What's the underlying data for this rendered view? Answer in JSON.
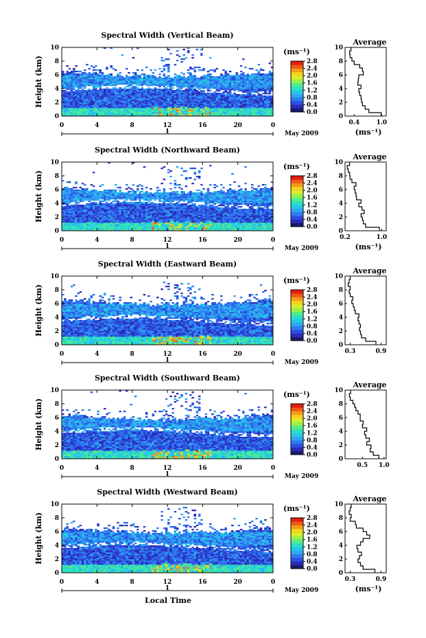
{
  "xlabel": "Local Time",
  "date_label": "May 2009",
  "day_label": "1",
  "unit_label": "(ms⁻¹)",
  "chart_data": [
    {
      "type": "heatmap",
      "title": "Spectral Width (Vertical Beam)",
      "ylabel": "Height (km)",
      "xticks": [
        "0",
        "4",
        "8",
        "12",
        "16",
        "20",
        "0"
      ],
      "yticks": [
        "0",
        "2",
        "4",
        "6",
        "8",
        "10"
      ],
      "xlim": [
        0,
        24
      ],
      "ylim": [
        0,
        10
      ],
      "colorbar": {
        "ticks": [
          "0.0",
          "0.4",
          "0.8",
          "1.2",
          "1.6",
          "2.0",
          "2.4",
          "2.8"
        ],
        "range": [
          0,
          2.8
        ]
      },
      "avg": {
        "title": "Average",
        "xticks": [
          "0.4",
          "1.0"
        ],
        "xlim": [
          0.2,
          1.1
        ],
        "xlabel": "(ms⁻¹)",
        "heights": [
          0,
          0.5,
          1,
          1.5,
          2,
          2.5,
          3,
          3.5,
          4,
          4.5,
          5,
          5.5,
          6,
          6.5,
          7,
          7.5,
          8,
          8.5,
          9,
          9.5
        ],
        "values": [
          0.99,
          0.72,
          0.64,
          0.58,
          0.56,
          0.55,
          0.52,
          0.5,
          0.55,
          0.48,
          0.49,
          0.5,
          0.6,
          0.58,
          0.52,
          0.4,
          0.35,
          0.31,
          0.3,
          0.33
        ]
      },
      "band": {
        "top": 6.5,
        "gap": 3.8,
        "spikeTop": 10
      }
    },
    {
      "type": "heatmap",
      "title": "Spectral Width (Northward Beam)",
      "ylabel": "Height (km)",
      "xticks": [
        "0",
        "4",
        "8",
        "12",
        "16",
        "20",
        "0"
      ],
      "yticks": [
        "0",
        "2",
        "4",
        "6",
        "8",
        "10"
      ],
      "xlim": [
        0,
        24
      ],
      "ylim": [
        0,
        10
      ],
      "colorbar": {
        "ticks": [
          "0.0",
          "0.4",
          "0.8",
          "1.2",
          "1.6",
          "2.0",
          "2.4",
          "2.8"
        ],
        "range": [
          0,
          2.8
        ]
      },
      "avg": {
        "title": "Average",
        "xticks": [
          "0.2",
          "1.0"
        ],
        "xlim": [
          0.2,
          1.1
        ],
        "xlabel": "(ms⁻¹)",
        "heights": [
          0,
          0.5,
          1,
          1.5,
          2,
          2.5,
          3,
          3.5,
          4,
          4.5,
          5,
          5.5,
          6,
          6.5,
          7,
          7.5,
          8,
          8.5,
          9,
          9.5
        ],
        "values": [
          0.95,
          0.65,
          0.6,
          0.58,
          0.55,
          0.62,
          0.57,
          0.5,
          0.55,
          0.45,
          0.44,
          0.42,
          0.4,
          0.44,
          0.35,
          0.31,
          0.3,
          0.27,
          0.25,
          0.3
        ]
      },
      "band": {
        "top": 6.3,
        "gap": 3.9,
        "spikeTop": 9.5
      }
    },
    {
      "type": "heatmap",
      "title": "Spectral Width (Eastward Beam)",
      "ylabel": "Height (km)",
      "xticks": [
        "0",
        "4",
        "8",
        "12",
        "16",
        "20",
        "0"
      ],
      "yticks": [
        "0",
        "2",
        "4",
        "6",
        "8",
        "10"
      ],
      "xlim": [
        0,
        24
      ],
      "ylim": [
        0,
        10
      ],
      "colorbar": {
        "ticks": [
          "0.0",
          "0.4",
          "0.8",
          "1.2",
          "1.6",
          "2.0",
          "2.4",
          "2.8"
        ],
        "range": [
          0,
          2.8
        ]
      },
      "avg": {
        "title": "Average",
        "xticks": [
          "0.3",
          "0.9"
        ],
        "xlim": [
          0.2,
          1.0
        ],
        "xlabel": "",
        "heights": [
          0,
          0.5,
          1,
          1.5,
          2,
          2.5,
          3,
          3.5,
          4,
          4.5,
          5,
          5.5,
          6,
          6.5,
          7,
          7.5,
          8,
          8.5,
          9,
          9.5
        ],
        "values": [
          0.8,
          0.6,
          0.52,
          0.5,
          0.48,
          0.5,
          0.47,
          0.45,
          0.47,
          0.4,
          0.38,
          0.36,
          0.33,
          0.35,
          0.3,
          0.28,
          0.3,
          0.26,
          0.28,
          0.3
        ]
      },
      "band": {
        "top": 6.6,
        "gap": 3.6,
        "spikeTop": 9.2
      }
    },
    {
      "type": "heatmap",
      "title": "Spectral Width (Southward Beam)",
      "ylabel": "Height (km)",
      "xticks": [
        "0",
        "4",
        "8",
        "12",
        "16",
        "20",
        "0"
      ],
      "yticks": [
        "0",
        "2",
        "4",
        "6",
        "8",
        "10"
      ],
      "xlim": [
        0,
        24
      ],
      "ylim": [
        0,
        10
      ],
      "colorbar": {
        "ticks": [
          "0.0",
          "0.4",
          "0.8",
          "1.2",
          "1.6",
          "2.0",
          "2.4",
          "2.8"
        ],
        "range": [
          0,
          2.8
        ]
      },
      "avg": {
        "title": "Average",
        "xticks": [
          "0.5",
          "1.0"
        ],
        "xlim": [
          0.1,
          1.05
        ],
        "xlabel": "",
        "heights": [
          0,
          0.5,
          1,
          1.5,
          2,
          2.5,
          3,
          3.5,
          4,
          4.5,
          5,
          5.5,
          6,
          6.5,
          7,
          7.5,
          8,
          8.5,
          9,
          9.5
        ],
        "values": [
          0.88,
          0.75,
          0.68,
          0.7,
          0.6,
          0.66,
          0.58,
          0.55,
          0.6,
          0.5,
          0.52,
          0.45,
          0.45,
          0.4,
          0.35,
          0.32,
          0.28,
          0.22,
          0.2,
          0.23
        ]
      },
      "band": {
        "top": 6.4,
        "gap": 3.9,
        "spikeTop": 9.8
      }
    },
    {
      "type": "heatmap",
      "title": "Spectral Width (Westward Beam)",
      "ylabel": "Height (km)",
      "xticks": [
        "0",
        "4",
        "8",
        "12",
        "16",
        "20",
        "0"
      ],
      "yticks": [
        "0",
        "2",
        "4",
        "6",
        "8",
        "10"
      ],
      "xlim": [
        0,
        24
      ],
      "ylim": [
        0,
        10
      ],
      "colorbar": {
        "ticks": [
          "0.0",
          "0.4",
          "0.8",
          "1.2",
          "1.6",
          "2.0",
          "2.4",
          "2.8"
        ],
        "range": [
          0,
          2.8
        ]
      },
      "avg": {
        "title": "Average",
        "xticks": [
          "0.3",
          "0.9"
        ],
        "xlim": [
          0.2,
          1.0
        ],
        "xlabel": "(ms⁻¹)",
        "heights": [
          0,
          0.5,
          1,
          1.5,
          2,
          2.5,
          3,
          3.5,
          4,
          4.5,
          5,
          5.5,
          6,
          6.5,
          7,
          7.5,
          8,
          8.5,
          9,
          9.5
        ],
        "values": [
          0.78,
          0.55,
          0.5,
          0.45,
          0.48,
          0.52,
          0.45,
          0.43,
          0.5,
          0.55,
          0.68,
          0.62,
          0.55,
          0.42,
          0.4,
          0.3,
          0.32,
          0.28,
          0.3,
          0.32
        ]
      },
      "band": {
        "top": 6.5,
        "gap": 3.8,
        "spikeTop": 9.6
      }
    }
  ],
  "colors": {
    "colormap": [
      "#1a1a6e",
      "#2b2bb8",
      "#2c4fe0",
      "#2f7bf2",
      "#2ea7f0",
      "#26c9e6",
      "#2ce0c4",
      "#52eb8a",
      "#9af04c",
      "#d6ee2c",
      "#f7d21e",
      "#f79a18",
      "#f05a14",
      "#e41e10"
    ]
  }
}
